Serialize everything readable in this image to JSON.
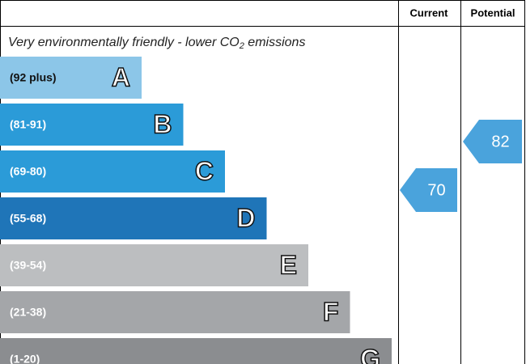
{
  "header": {
    "current": "Current",
    "potential": "Potential"
  },
  "subtitle": {
    "before": "Very environmentally friendly - lower CO",
    "subscript": "2",
    "after": " emissions"
  },
  "bands": [
    {
      "range": "(92 plus)",
      "letter": "A",
      "color": "#8cc6e8"
    },
    {
      "range": "(81-91)",
      "letter": "B",
      "color": "#2b9bd8"
    },
    {
      "range": "(69-80)",
      "letter": "C",
      "color": "#2b9bd8"
    },
    {
      "range": "(55-68)",
      "letter": "D",
      "color": "#1f75b8"
    },
    {
      "range": "(39-54)",
      "letter": "E",
      "color": "#bcbec0"
    },
    {
      "range": "(21-38)",
      "letter": "F",
      "color": "#a4a6a9"
    },
    {
      "range": "(1-20)",
      "letter": "G",
      "color": "#8b8d90"
    }
  ],
  "current": 70,
  "potential": 82,
  "arrow_color": "#4aa3dc"
}
